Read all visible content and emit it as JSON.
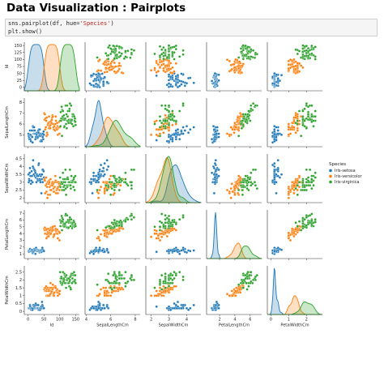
{
  "notebook": {
    "heading": "Data Visualization : Pairplots",
    "code_cell": {
      "line1_prefix": "sns.pairplot(df, hue=",
      "line1_string": "'Species'",
      "line1_suffix": ")",
      "line2": "plt.show()"
    }
  },
  "chart_data": {
    "type": "scatter",
    "subtype": "pairplot",
    "diagonal": "kde",
    "variables": [
      "Id",
      "SepalLengthCm",
      "SepalWidthCm",
      "PetalLengthCm",
      "PetalWidthCm"
    ],
    "axis_labels": [
      "Id",
      "SepalLengthCm",
      "SepalWidthCm",
      "PetalLengthCm",
      "PetalWidthCm"
    ],
    "ranges": {
      "Id": [
        -12,
        162
      ],
      "SepalLengthCm": [
        3.9,
        8.4
      ],
      "SepalWidthCm": [
        1.7,
        4.8
      ],
      "PetalLengthCm": [
        0.3,
        7.5
      ],
      "PetalWidthCm": [
        -0.2,
        2.9
      ]
    },
    "xticks": {
      "Id": [
        0,
        50,
        100,
        150
      ],
      "SepalLengthCm": [
        4,
        6,
        8
      ],
      "SepalWidthCm": [
        2,
        3,
        4
      ],
      "PetalLengthCm": [
        2,
        4,
        6
      ],
      "PetalWidthCm": [
        0,
        1,
        2
      ]
    },
    "yticks": {
      "Id": [
        0,
        25,
        50,
        75,
        100,
        125,
        150
      ],
      "SepalLengthCm": [
        5,
        6,
        7,
        8
      ],
      "SepalWidthCm": [
        2.0,
        2.5,
        3.0,
        3.5,
        4.0,
        4.5
      ],
      "PetalLengthCm": [
        1,
        2,
        3,
        4,
        5,
        6,
        7
      ],
      "PetalWidthCm": [
        0.0,
        0.5,
        1.0,
        1.5,
        2.0,
        2.5
      ]
    },
    "legend": {
      "title": "Species",
      "position": "right",
      "entries": [
        {
          "label": "Iris-setosa",
          "color": "#1f77b4"
        },
        {
          "label": "Iris-versicolor",
          "color": "#ff7f0e"
        },
        {
          "label": "Iris-virginica",
          "color": "#2ca02c"
        }
      ]
    },
    "series": [
      {
        "name": "Iris-setosa",
        "color": "#1f77b4",
        "SepalLengthCm": [
          5.1,
          4.9,
          4.7,
          4.6,
          5.0,
          5.4,
          4.6,
          5.0,
          4.4,
          4.9,
          5.4,
          4.8,
          4.8,
          4.3,
          5.8,
          5.7,
          5.4,
          5.1,
          5.7,
          5.1,
          5.4,
          5.1,
          4.6,
          5.1,
          4.8,
          5.0,
          5.0,
          5.2,
          5.2,
          4.7,
          4.8,
          5.4,
          5.2,
          5.5,
          4.9,
          5.0,
          5.5,
          4.9,
          4.4,
          5.1,
          5.0,
          4.5,
          4.4,
          5.0,
          5.1,
          4.8,
          5.1,
          4.6,
          5.3,
          5.0
        ],
        "SepalWidthCm": [
          3.5,
          3.0,
          3.2,
          3.1,
          3.6,
          3.9,
          3.4,
          3.4,
          2.9,
          3.1,
          3.7,
          3.4,
          3.0,
          3.0,
          4.0,
          4.4,
          3.9,
          3.5,
          3.8,
          3.8,
          3.4,
          3.7,
          3.6,
          3.3,
          3.4,
          3.0,
          3.4,
          3.5,
          3.4,
          3.2,
          3.1,
          3.4,
          4.1,
          4.2,
          3.1,
          3.2,
          3.5,
          3.1,
          3.0,
          3.4,
          3.5,
          2.3,
          3.2,
          3.5,
          3.8,
          3.0,
          3.8,
          3.2,
          3.7,
          3.3
        ],
        "PetalLengthCm": [
          1.4,
          1.4,
          1.3,
          1.5,
          1.4,
          1.7,
          1.4,
          1.5,
          1.4,
          1.5,
          1.5,
          1.6,
          1.4,
          1.1,
          1.2,
          1.5,
          1.3,
          1.4,
          1.7,
          1.5,
          1.7,
          1.5,
          1.0,
          1.7,
          1.9,
          1.6,
          1.6,
          1.5,
          1.4,
          1.6,
          1.6,
          1.5,
          1.5,
          1.4,
          1.5,
          1.2,
          1.3,
          1.5,
          1.3,
          1.5,
          1.3,
          1.3,
          1.3,
          1.6,
          1.9,
          1.4,
          1.6,
          1.4,
          1.5,
          1.4
        ],
        "PetalWidthCm": [
          0.2,
          0.2,
          0.2,
          0.2,
          0.2,
          0.4,
          0.3,
          0.2,
          0.2,
          0.1,
          0.2,
          0.2,
          0.1,
          0.1,
          0.2,
          0.4,
          0.4,
          0.3,
          0.3,
          0.3,
          0.2,
          0.4,
          0.2,
          0.5,
          0.2,
          0.2,
          0.4,
          0.2,
          0.2,
          0.2,
          0.2,
          0.4,
          0.1,
          0.2,
          0.1,
          0.2,
          0.2,
          0.1,
          0.2,
          0.2,
          0.3,
          0.3,
          0.2,
          0.6,
          0.4,
          0.3,
          0.2,
          0.2,
          0.2,
          0.2
        ]
      },
      {
        "name": "Iris-versicolor",
        "color": "#ff7f0e",
        "SepalLengthCm": [
          7.0,
          6.4,
          6.9,
          5.5,
          6.5,
          5.7,
          6.3,
          4.9,
          6.6,
          5.2,
          5.0,
          5.9,
          6.0,
          6.1,
          5.6,
          6.7,
          5.6,
          5.8,
          6.2,
          5.6,
          5.9,
          6.1,
          6.3,
          6.1,
          6.4,
          6.6,
          6.8,
          6.7,
          6.0,
          5.7,
          5.5,
          5.5,
          5.8,
          6.0,
          5.4,
          6.0,
          6.7,
          6.3,
          5.6,
          5.5,
          5.5,
          6.1,
          5.8,
          5.0,
          5.6,
          5.7,
          5.7,
          6.2,
          5.1,
          5.7
        ],
        "SepalWidthCm": [
          3.2,
          3.2,
          3.1,
          2.3,
          2.8,
          2.8,
          3.3,
          2.4,
          2.9,
          2.7,
          2.0,
          3.0,
          2.2,
          2.9,
          2.9,
          3.1,
          3.0,
          2.7,
          2.2,
          2.5,
          3.2,
          2.8,
          2.5,
          2.8,
          2.9,
          3.0,
          2.8,
          3.0,
          2.9,
          2.6,
          2.4,
          2.4,
          2.7,
          2.7,
          3.0,
          3.4,
          3.1,
          2.3,
          3.0,
          2.5,
          2.6,
          3.0,
          2.6,
          2.3,
          2.7,
          3.0,
          2.9,
          2.9,
          2.5,
          2.8
        ],
        "PetalLengthCm": [
          4.7,
          4.5,
          4.9,
          4.0,
          4.6,
          4.5,
          4.7,
          3.3,
          4.6,
          3.9,
          3.5,
          4.2,
          4.0,
          4.7,
          3.6,
          4.4,
          4.5,
          4.1,
          4.5,
          3.9,
          4.8,
          4.0,
          4.9,
          4.7,
          4.3,
          4.4,
          4.8,
          5.0,
          4.5,
          3.5,
          3.8,
          3.7,
          3.9,
          5.1,
          4.5,
          4.5,
          4.7,
          4.4,
          4.1,
          4.0,
          4.4,
          4.6,
          4.0,
          3.3,
          4.2,
          4.2,
          4.2,
          4.3,
          3.0,
          4.1
        ],
        "PetalWidthCm": [
          1.4,
          1.5,
          1.5,
          1.3,
          1.5,
          1.3,
          1.6,
          1.0,
          1.3,
          1.4,
          1.0,
          1.5,
          1.0,
          1.4,
          1.3,
          1.4,
          1.5,
          1.0,
          1.5,
          1.1,
          1.8,
          1.3,
          1.5,
          1.2,
          1.3,
          1.4,
          1.4,
          1.7,
          1.5,
          1.0,
          1.1,
          1.0,
          1.2,
          1.6,
          1.5,
          1.6,
          1.5,
          1.3,
          1.3,
          1.3,
          1.2,
          1.4,
          1.2,
          1.0,
          1.3,
          1.2,
          1.3,
          1.3,
          1.1,
          1.3
        ]
      },
      {
        "name": "Iris-virginica",
        "color": "#2ca02c",
        "SepalLengthCm": [
          6.3,
          5.8,
          7.1,
          6.3,
          6.5,
          7.6,
          4.9,
          7.3,
          6.7,
          7.2,
          6.5,
          6.4,
          6.8,
          5.7,
          5.8,
          6.4,
          6.5,
          7.7,
          7.7,
          6.0,
          6.9,
          5.6,
          7.7,
          6.3,
          6.7,
          7.2,
          6.2,
          6.1,
          6.4,
          7.2,
          7.4,
          7.9,
          6.4,
          6.3,
          6.1,
          7.7,
          6.3,
          6.4,
          6.0,
          6.9,
          6.7,
          6.9,
          5.8,
          6.8,
          6.7,
          6.7,
          6.3,
          6.5,
          6.2,
          5.9
        ],
        "SepalWidthCm": [
          3.3,
          2.7,
          3.0,
          2.9,
          3.0,
          3.0,
          2.5,
          2.9,
          2.5,
          3.6,
          3.2,
          2.7,
          3.0,
          2.5,
          2.8,
          3.2,
          3.0,
          3.8,
          2.6,
          2.2,
          3.2,
          2.8,
          2.8,
          2.7,
          3.3,
          3.2,
          2.8,
          3.0,
          2.8,
          3.0,
          2.8,
          3.8,
          2.8,
          2.8,
          2.6,
          3.0,
          3.4,
          3.1,
          3.0,
          3.1,
          3.1,
          3.1,
          2.7,
          3.2,
          3.3,
          3.0,
          2.5,
          3.0,
          3.4,
          3.0
        ],
        "PetalLengthCm": [
          6.0,
          5.1,
          5.9,
          5.6,
          5.8,
          6.6,
          4.5,
          6.3,
          5.8,
          6.1,
          5.1,
          5.3,
          5.5,
          5.0,
          5.1,
          5.3,
          5.5,
          6.7,
          6.9,
          5.0,
          5.7,
          4.9,
          6.7,
          4.9,
          5.7,
          6.0,
          4.8,
          4.9,
          5.6,
          5.8,
          6.1,
          6.4,
          5.6,
          5.1,
          5.6,
          6.1,
          5.6,
          5.5,
          4.8,
          5.4,
          5.6,
          5.1,
          5.1,
          5.9,
          5.7,
          5.2,
          5.0,
          5.2,
          5.4,
          5.1
        ],
        "PetalWidthCm": [
          2.5,
          1.9,
          2.1,
          1.8,
          2.2,
          2.1,
          1.7,
          1.8,
          1.8,
          2.5,
          2.0,
          1.9,
          2.1,
          2.0,
          2.4,
          2.3,
          1.8,
          2.2,
          2.3,
          1.5,
          2.3,
          2.0,
          2.0,
          1.8,
          2.1,
          1.8,
          1.8,
          1.8,
          2.1,
          1.6,
          1.9,
          2.0,
          2.2,
          1.5,
          1.4,
          2.3,
          2.4,
          1.8,
          1.8,
          2.1,
          2.4,
          2.3,
          1.9,
          2.3,
          2.5,
          2.3,
          1.9,
          2.0,
          2.3,
          1.8
        ]
      }
    ]
  }
}
